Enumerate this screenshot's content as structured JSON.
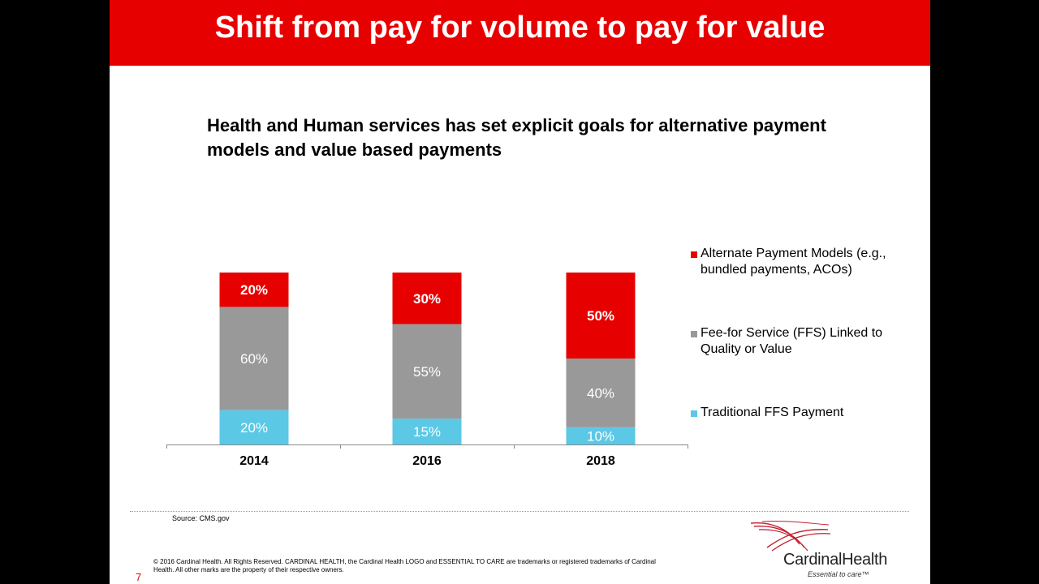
{
  "slide": {
    "title": "Shift from pay for volume to pay for value",
    "subtitle": "Health and Human services has set explicit goals for alternative payment models and value based payments",
    "source": "Source: CMS.gov",
    "copyright": "© 2016 Cardinal Health. All Rights Reserved. CARDINAL HEALTH, the Cardinal Health LOGO and ESSENTIAL TO CARE are trademarks or registered trademarks of Cardinal Health. All other marks are the property of their respective owners.",
    "page_number": "7"
  },
  "logo": {
    "wordmark": "CardinalHealth",
    "tagline": "Essential to care™"
  },
  "colors": {
    "title_bar": "#e60000",
    "apm": "#e60000",
    "ffs_linked": "#999999",
    "traditional": "#5bc8e6"
  },
  "chart_data": {
    "type": "bar",
    "stacked": true,
    "categories": [
      "2014",
      "2016",
      "2018"
    ],
    "series": [
      {
        "name": "Traditional FFS Payment",
        "values": [
          20,
          15,
          10
        ],
        "labels": [
          "20%",
          "15%",
          "10%"
        ],
        "color": "#5bc8e6"
      },
      {
        "name": "Fee-for Service (FFS) Linked to Quality or Value",
        "values": [
          60,
          55,
          40
        ],
        "labels": [
          "60%",
          "55%",
          "40%"
        ],
        "color": "#999999"
      },
      {
        "name": "Alternate Payment Models (e.g., bundled payments, ACOs)",
        "values": [
          20,
          30,
          50
        ],
        "labels": [
          "20%",
          "30%",
          "50%"
        ],
        "color": "#e60000"
      }
    ],
    "legend_placement": "right",
    "legend_order": [
      2,
      1,
      0
    ]
  }
}
